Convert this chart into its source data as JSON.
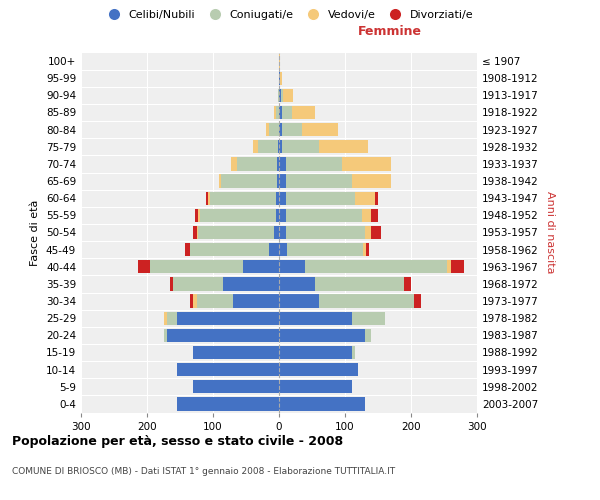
{
  "age_groups": [
    "0-4",
    "5-9",
    "10-14",
    "15-19",
    "20-24",
    "25-29",
    "30-34",
    "35-39",
    "40-44",
    "45-49",
    "50-54",
    "55-59",
    "60-64",
    "65-69",
    "70-74",
    "75-79",
    "80-84",
    "85-89",
    "90-94",
    "95-99",
    "100+"
  ],
  "birth_years": [
    "2003-2007",
    "1998-2002",
    "1993-1997",
    "1988-1992",
    "1983-1987",
    "1978-1982",
    "1973-1977",
    "1968-1972",
    "1963-1967",
    "1958-1962",
    "1953-1957",
    "1948-1952",
    "1943-1947",
    "1938-1942",
    "1933-1937",
    "1928-1932",
    "1923-1927",
    "1918-1922",
    "1913-1917",
    "1908-1912",
    "≤ 1907"
  ],
  "males": {
    "celibe": [
      155,
      130,
      155,
      130,
      170,
      155,
      70,
      85,
      55,
      15,
      8,
      5,
      5,
      3,
      3,
      2,
      0,
      0,
      0,
      0,
      0
    ],
    "coniugato": [
      0,
      0,
      0,
      0,
      5,
      15,
      55,
      75,
      140,
      120,
      115,
      115,
      100,
      85,
      60,
      30,
      15,
      5,
      2,
      0,
      0
    ],
    "vedovo": [
      0,
      0,
      0,
      0,
      0,
      5,
      5,
      0,
      0,
      0,
      2,
      2,
      3,
      3,
      10,
      8,
      5,
      3,
      0,
      0,
      0
    ],
    "divorziato": [
      0,
      0,
      0,
      0,
      0,
      0,
      5,
      5,
      18,
      8,
      5,
      5,
      3,
      0,
      0,
      0,
      0,
      0,
      0,
      0,
      0
    ]
  },
  "females": {
    "nubile": [
      130,
      110,
      120,
      110,
      130,
      110,
      60,
      55,
      40,
      12,
      10,
      10,
      10,
      10,
      10,
      5,
      5,
      5,
      3,
      2,
      0
    ],
    "coniugata": [
      0,
      0,
      0,
      5,
      10,
      50,
      145,
      135,
      215,
      115,
      120,
      115,
      105,
      100,
      85,
      55,
      30,
      15,
      3,
      0,
      0
    ],
    "vedova": [
      0,
      0,
      0,
      0,
      0,
      0,
      0,
      0,
      5,
      5,
      10,
      15,
      30,
      60,
      75,
      75,
      55,
      35,
      15,
      3,
      2
    ],
    "divorziata": [
      0,
      0,
      0,
      0,
      0,
      0,
      10,
      10,
      20,
      5,
      15,
      10,
      5,
      0,
      0,
      0,
      0,
      0,
      0,
      0,
      0
    ]
  },
  "colors": {
    "celibe": "#4472C4",
    "coniugato": "#B8CCB0",
    "vedovo": "#F5C97A",
    "divorziato": "#CC2222"
  },
  "legend_labels": [
    "Celibi/Nubili",
    "Coniugati/e",
    "Vedovi/e",
    "Divorziati/e"
  ],
  "title_main": "Popolazione per età, sesso e stato civile - 2008",
  "title_sub": "COMUNE DI BRIOSCO (MB) - Dati ISTAT 1° gennaio 2008 - Elaborazione TUTTITALIA.IT",
  "label_femmine": "Femmine",
  "ylabel_left": "Fasce di età",
  "ylabel_right": "Anni di nascita",
  "xlim": 300,
  "bg_color": "#FFFFFF",
  "plot_bg": "#EFEFEF"
}
